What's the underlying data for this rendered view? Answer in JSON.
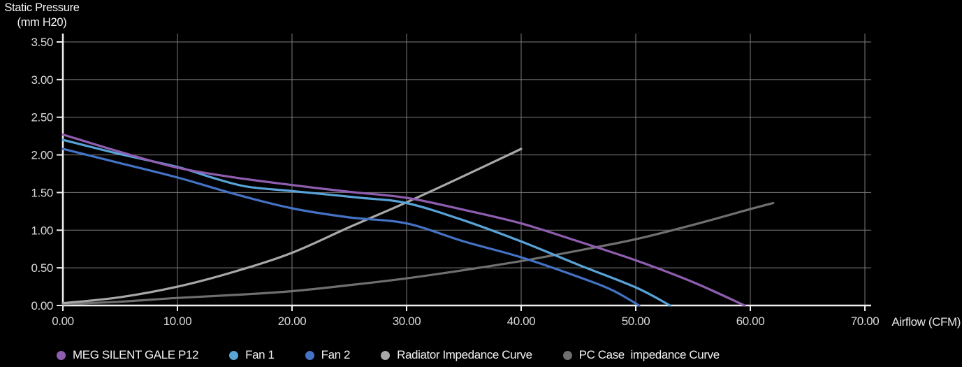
{
  "titles": {
    "y_axis_line1": "Static Pressure",
    "y_axis_line2": "(mm H20)",
    "x_axis": "Airflow (CFM)"
  },
  "colors": {
    "background": "#000000",
    "axis_line": "#f0f0f0",
    "gridline": "#7d7d7d",
    "tick_label": "#d9d9d9"
  },
  "chart_data": {
    "type": "line",
    "title": "",
    "xlabel": "Airflow (CFM)",
    "ylabel": "Static Pressure (mm H20)",
    "xlim": [
      0,
      70
    ],
    "ylim": [
      0,
      3.5
    ],
    "grid": true,
    "legend_position": "bottom",
    "x_ticks": [
      0,
      10,
      20,
      30,
      40,
      50,
      60,
      70
    ],
    "x_tick_labels": [
      "0.00",
      "10.00",
      "20.00",
      "30.00",
      "40.00",
      "50.00",
      "60.00",
      "70.00"
    ],
    "y_ticks": [
      0,
      0.5,
      1,
      1.5,
      2,
      2.5,
      3,
      3.5
    ],
    "y_tick_labels": [
      "0.00",
      "0.50",
      "1.00",
      "1.50",
      "2.00",
      "2.50",
      "3.00",
      "3.50"
    ],
    "series": [
      {
        "name": "MEG SILENT GALE P12",
        "color": "#8f5eb0",
        "points": [
          [
            0,
            2.27
          ],
          [
            5,
            2.04
          ],
          [
            10,
            1.83
          ],
          [
            15,
            1.7
          ],
          [
            20,
            1.6
          ],
          [
            25,
            1.51
          ],
          [
            30,
            1.43
          ],
          [
            35,
            1.27
          ],
          [
            40,
            1.09
          ],
          [
            45,
            0.85
          ],
          [
            50,
            0.6
          ],
          [
            55,
            0.31
          ],
          [
            59.5,
            0
          ]
        ]
      },
      {
        "name": "Fan 1",
        "color": "#58a3d8",
        "points": [
          [
            0,
            2.2
          ],
          [
            5,
            2.01
          ],
          [
            10,
            1.84
          ],
          [
            13,
            1.7
          ],
          [
            16,
            1.58
          ],
          [
            20,
            1.52
          ],
          [
            26,
            1.43
          ],
          [
            30,
            1.36
          ],
          [
            35,
            1.13
          ],
          [
            40,
            0.85
          ],
          [
            45,
            0.54
          ],
          [
            50,
            0.24
          ],
          [
            53,
            0
          ]
        ]
      },
      {
        "name": "Fan 2",
        "color": "#4472c4",
        "points": [
          [
            0,
            2.08
          ],
          [
            5,
            1.89
          ],
          [
            10,
            1.7
          ],
          [
            15,
            1.48
          ],
          [
            20,
            1.29
          ],
          [
            25,
            1.17
          ],
          [
            30,
            1.09
          ],
          [
            35,
            0.85
          ],
          [
            40,
            0.64
          ],
          [
            45,
            0.38
          ],
          [
            48,
            0.2
          ],
          [
            50.3,
            0
          ]
        ]
      },
      {
        "name": "Radiator Impedance Curve",
        "color": "#a8a8a8",
        "points": [
          [
            0,
            0.03
          ],
          [
            5,
            0.11
          ],
          [
            10,
            0.25
          ],
          [
            15,
            0.45
          ],
          [
            20,
            0.7
          ],
          [
            25,
            1.04
          ],
          [
            30,
            1.37
          ],
          [
            35,
            1.72
          ],
          [
            40,
            2.08
          ]
        ]
      },
      {
        "name": "PC Case  impedance Curve",
        "color": "#6f6f6f",
        "points": [
          [
            0,
            0.02
          ],
          [
            5,
            0.05
          ],
          [
            10,
            0.1
          ],
          [
            15,
            0.14
          ],
          [
            20,
            0.19
          ],
          [
            25,
            0.27
          ],
          [
            30,
            0.36
          ],
          [
            35,
            0.47
          ],
          [
            40,
            0.59
          ],
          [
            45,
            0.73
          ],
          [
            50,
            0.88
          ],
          [
            55,
            1.07
          ],
          [
            60,
            1.28
          ],
          [
            62,
            1.36
          ]
        ]
      }
    ]
  }
}
